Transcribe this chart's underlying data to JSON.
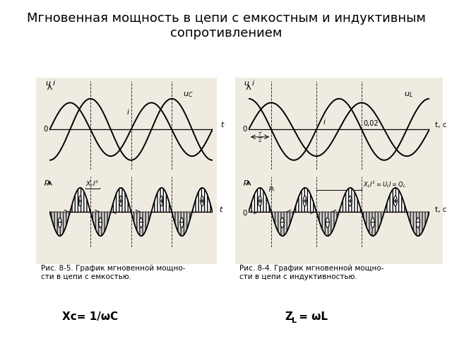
{
  "title": "Мгновенная мощность в цепи с емкостным и индуктивным\nсопротивлением",
  "title_fontsize": 13,
  "bg_color": "#f0ebe0",
  "fig_bg": "#ffffff",
  "caption_left": "Рис. 8-5. График мгновенной мощно-\nсти в цепи с емкостью.",
  "caption_right": "Рис. 8-4. График мгновенной мощно-\nсти в цепи с индуктивностью.",
  "formula_left": "Xc= 1/ωC",
  "formula_right_main": "Z",
  "formula_right_sub": "L",
  "formula_right_rest": " = ωL"
}
